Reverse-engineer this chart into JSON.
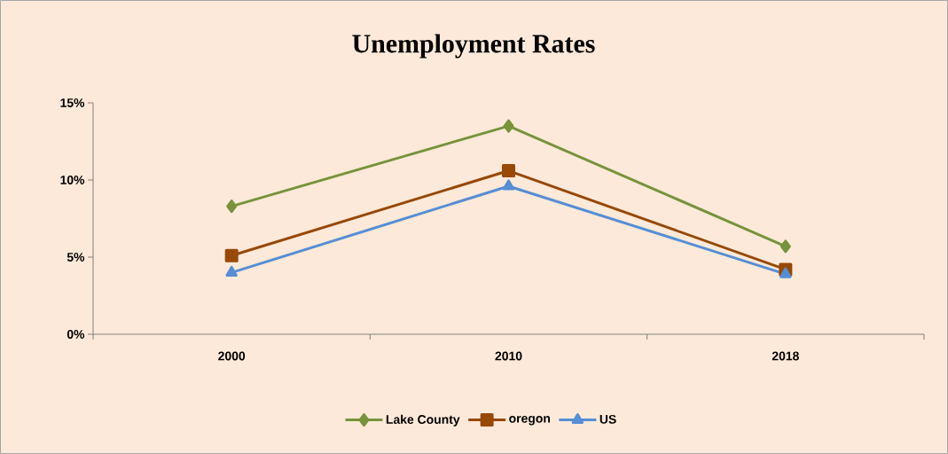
{
  "chart_data": {
    "type": "line",
    "title": "Unemployment Rates",
    "categories": [
      "2000",
      "2010",
      "2018"
    ],
    "series": [
      {
        "name": "Lake County",
        "color": "#77933c",
        "marker": "diamond",
        "values": [
          8.3,
          13.5,
          5.7
        ]
      },
      {
        "name": "oregon",
        "color": "#984807",
        "marker": "square",
        "values": [
          5.1,
          10.6,
          4.2
        ]
      },
      {
        "name": "US",
        "color": "#558ed5",
        "marker": "triangle",
        "values": [
          4.0,
          9.6,
          3.9
        ]
      }
    ],
    "ylim": [
      0,
      15
    ],
    "yticks": [
      {
        "value": 0,
        "label": "0%"
      },
      {
        "value": 5,
        "label": "5%"
      },
      {
        "value": 10,
        "label": "10%"
      },
      {
        "value": 15,
        "label": "15%"
      }
    ],
    "grid": false,
    "legend": "bottom",
    "line_style": "solid"
  }
}
